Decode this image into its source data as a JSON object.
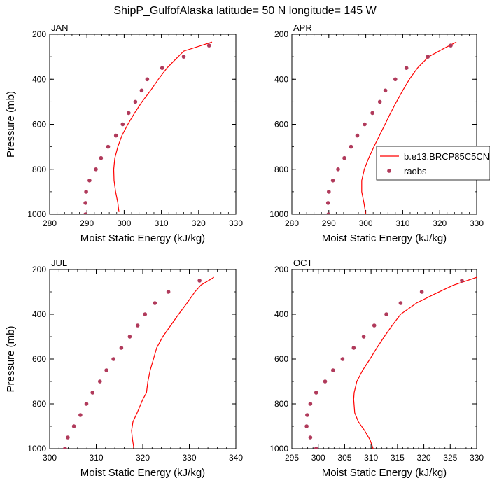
{
  "title": "ShipP_GulfofAlaska  latitude= 50 N longitude= 145 W",
  "colors": {
    "model": "#ff0000",
    "obs": "#b03a5b",
    "axis": "#000000"
  },
  "legend": {
    "model_label": "b.e13.BRCP85C5CN",
    "obs_label": "raobs"
  },
  "chart_data": [
    {
      "type": "line",
      "panel": "JAN",
      "xlabel": "Moist Static Energy (kJ/kg)",
      "ylabel": "Pressure (mb)",
      "xlim": [
        280,
        330
      ],
      "ylim": [
        1000,
        200
      ],
      "xticks": [
        280,
        290,
        300,
        310,
        320,
        330
      ],
      "yticks": [
        200,
        400,
        600,
        800,
        1000
      ],
      "series": [
        {
          "name": "b.e13.BRCP85C5CN",
          "kind": "line",
          "x": [
            298.6,
            298.3,
            297.7,
            297.3,
            297.2,
            297.5,
            298.3,
            299.4,
            301.0,
            302.8,
            304.8,
            307.1,
            309.2,
            311.5,
            316.0,
            323.6
          ],
          "y": [
            990,
            950,
            900,
            850,
            800,
            750,
            700,
            650,
            600,
            550,
            500,
            450,
            400,
            350,
            275,
            235
          ]
        },
        {
          "name": "raobs",
          "kind": "scatter",
          "x": [
            289.6,
            289.6,
            289.8,
            290.7,
            292.4,
            293.8,
            295.7,
            297.8,
            299.6,
            301.2,
            303.0,
            304.7,
            306.2,
            310.2,
            316.0,
            322.8
          ],
          "y": [
            1000,
            950,
            900,
            850,
            800,
            750,
            700,
            650,
            600,
            550,
            500,
            450,
            400,
            350,
            300,
            250
          ]
        }
      ]
    },
    {
      "type": "line",
      "panel": "APR",
      "xlabel": "Moist Static Energy (kJ/kg)",
      "ylabel": "",
      "xlim": [
        280,
        330
      ],
      "ylim": [
        1000,
        200
      ],
      "xticks": [
        280,
        290,
        300,
        310,
        320,
        330
      ],
      "yticks": [
        200,
        400,
        600,
        800,
        1000
      ],
      "series": [
        {
          "name": "b.e13.BRCP85C5CN",
          "kind": "line",
          "x": [
            300.0,
            299.5,
            298.9,
            298.9,
            299.6,
            300.8,
            302.2,
            303.7,
            305.2,
            306.7,
            308.3,
            310.0,
            311.8,
            314.0,
            317.0,
            321.5,
            324.5
          ],
          "y": [
            1000,
            950,
            900,
            850,
            800,
            750,
            700,
            650,
            600,
            550,
            500,
            450,
            400,
            350,
            300,
            260,
            235
          ]
        },
        {
          "name": "raobs",
          "kind": "scatter",
          "x": [
            289.9,
            289.8,
            290.0,
            291.1,
            292.5,
            294.2,
            296.0,
            297.7,
            299.7,
            301.8,
            303.8,
            305.3,
            308.0,
            311.0,
            316.8,
            323.0
          ],
          "y": [
            1000,
            950,
            900,
            850,
            800,
            750,
            700,
            650,
            600,
            550,
            500,
            450,
            400,
            350,
            300,
            250
          ]
        }
      ]
    },
    {
      "type": "line",
      "panel": "JUL",
      "xlabel": "Moist Static Energy (kJ/kg)",
      "ylabel": "Pressure (mb)",
      "xlim": [
        300,
        340
      ],
      "ylim": [
        1000,
        200
      ],
      "xticks": [
        300,
        310,
        320,
        330,
        340
      ],
      "yticks": [
        200,
        400,
        600,
        800,
        1000
      ],
      "series": [
        {
          "name": "b.e13.BRCP85C5CN",
          "kind": "line",
          "x": [
            318.1,
            317.8,
            317.6,
            317.9,
            318.8,
            320.0,
            320.8,
            321.1,
            321.6,
            322.3,
            323.0,
            324.3,
            326.0,
            327.7,
            329.5,
            331.2,
            332.5,
            335.3
          ],
          "y": [
            1000,
            960,
            920,
            880,
            840,
            780,
            750,
            700,
            650,
            600,
            550,
            500,
            450,
            400,
            350,
            300,
            270,
            235
          ]
        },
        {
          "name": "raobs",
          "kind": "scatter",
          "x": [
            303.3,
            303.9,
            305.2,
            306.6,
            307.9,
            309.2,
            310.8,
            312.2,
            313.7,
            315.4,
            317.2,
            318.9,
            320.5,
            322.6,
            325.5,
            332.2
          ],
          "y": [
            1000,
            950,
            900,
            850,
            800,
            750,
            700,
            650,
            600,
            550,
            500,
            450,
            400,
            350,
            300,
            250
          ]
        }
      ]
    },
    {
      "type": "line",
      "panel": "OCT",
      "xlabel": "Moist Static Energy (kJ/kg)",
      "ylabel": "",
      "xlim": [
        295,
        330
      ],
      "ylim": [
        1000,
        200
      ],
      "xticks": [
        295,
        300,
        305,
        310,
        315,
        320,
        325,
        330
      ],
      "yticks": [
        200,
        400,
        600,
        800,
        1000
      ],
      "series": [
        {
          "name": "b.e13.BRCP85C5CN",
          "kind": "line",
          "x": [
            310.4,
            309.8,
            308.8,
            307.6,
            306.9,
            306.7,
            306.8,
            307.3,
            308.4,
            309.8,
            311.1,
            312.5,
            314.0,
            315.6,
            318.6,
            322.0,
            325.6,
            330.0
          ],
          "y": [
            1000,
            960,
            920,
            880,
            840,
            780,
            750,
            700,
            650,
            600,
            550,
            500,
            450,
            400,
            350,
            310,
            270,
            235
          ]
        },
        {
          "name": "raobs",
          "kind": "scatter",
          "x": [
            299.6,
            298.5,
            297.8,
            297.9,
            298.5,
            299.6,
            301.3,
            302.8,
            304.6,
            306.7,
            308.6,
            310.6,
            312.9,
            315.6,
            319.6,
            327.2
          ],
          "y": [
            1000,
            950,
            900,
            850,
            800,
            750,
            700,
            650,
            600,
            550,
            500,
            450,
            400,
            350,
            300,
            250
          ]
        }
      ]
    }
  ]
}
